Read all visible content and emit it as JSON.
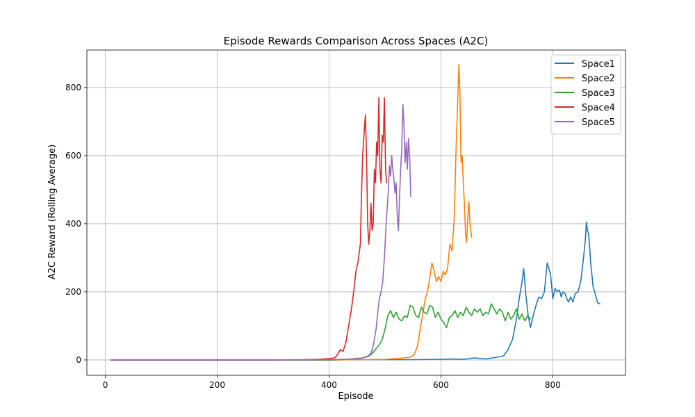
{
  "chart_data": {
    "type": "line",
    "title": "Episode Rewards Comparison Across Spaces (A2C)",
    "xlabel": "Episode",
    "ylabel": "A2C Reward (Rolling Average)",
    "xlim": [
      -33,
      930
    ],
    "ylim": [
      -45,
      910
    ],
    "xticks": [
      0,
      200,
      400,
      600,
      800
    ],
    "yticks": [
      0,
      200,
      400,
      600,
      800
    ],
    "grid": true,
    "legend_position": "top-right",
    "series": [
      {
        "name": "Space1",
        "color": "#1f77b4",
        "points": [
          [
            10,
            0
          ],
          [
            100,
            0
          ],
          [
            200,
            0
          ],
          [
            300,
            0
          ],
          [
            400,
            0
          ],
          [
            450,
            1
          ],
          [
            500,
            1
          ],
          [
            550,
            1
          ],
          [
            600,
            2
          ],
          [
            620,
            3
          ],
          [
            640,
            2
          ],
          [
            660,
            6
          ],
          [
            680,
            3
          ],
          [
            700,
            8
          ],
          [
            712,
            12
          ],
          [
            720,
            30
          ],
          [
            728,
            60
          ],
          [
            735,
            120
          ],
          [
            740,
            180
          ],
          [
            745,
            230
          ],
          [
            748,
            268
          ],
          [
            752,
            190
          ],
          [
            756,
            130
          ],
          [
            760,
            95
          ],
          [
            765,
            130
          ],
          [
            770,
            160
          ],
          [
            775,
            185
          ],
          [
            780,
            180
          ],
          [
            785,
            200
          ],
          [
            790,
            285
          ],
          [
            793,
            270
          ],
          [
            796,
            250
          ],
          [
            800,
            180
          ],
          [
            804,
            210
          ],
          [
            808,
            200
          ],
          [
            812,
            205
          ],
          [
            815,
            185
          ],
          [
            818,
            200
          ],
          [
            822,
            195
          ],
          [
            825,
            180
          ],
          [
            828,
            170
          ],
          [
            832,
            185
          ],
          [
            836,
            170
          ],
          [
            840,
            195
          ],
          [
            845,
            200
          ],
          [
            850,
            230
          ],
          [
            855,
            300
          ],
          [
            858,
            350
          ],
          [
            860,
            405
          ],
          [
            862,
            380
          ],
          [
            864,
            370
          ],
          [
            866,
            330
          ],
          [
            868,
            280
          ],
          [
            870,
            250
          ],
          [
            872,
            215
          ],
          [
            875,
            200
          ],
          [
            878,
            180
          ],
          [
            880,
            168
          ],
          [
            884,
            165
          ]
        ]
      },
      {
        "name": "Space2",
        "color": "#ff7f0e",
        "points": [
          [
            10,
            0
          ],
          [
            100,
            0
          ],
          [
            200,
            0
          ],
          [
            300,
            0
          ],
          [
            400,
            0
          ],
          [
            450,
            1
          ],
          [
            500,
            2
          ],
          [
            520,
            4
          ],
          [
            535,
            6
          ],
          [
            545,
            8
          ],
          [
            552,
            15
          ],
          [
            558,
            40
          ],
          [
            563,
            90
          ],
          [
            568,
            140
          ],
          [
            572,
            180
          ],
          [
            576,
            200
          ],
          [
            580,
            240
          ],
          [
            584,
            285
          ],
          [
            588,
            260
          ],
          [
            592,
            230
          ],
          [
            596,
            245
          ],
          [
            600,
            230
          ],
          [
            604,
            260
          ],
          [
            608,
            250
          ],
          [
            612,
            270
          ],
          [
            616,
            340
          ],
          [
            620,
            320
          ],
          [
            624,
            420
          ],
          [
            627,
            620
          ],
          [
            630,
            760
          ],
          [
            632,
            868
          ],
          [
            634,
            780
          ],
          [
            636,
            580
          ],
          [
            638,
            600
          ],
          [
            640,
            520
          ],
          [
            642,
            460
          ],
          [
            644,
            370
          ],
          [
            646,
            345
          ],
          [
            648,
            420
          ],
          [
            650,
            465
          ],
          [
            652,
            400
          ],
          [
            655,
            360
          ]
        ]
      },
      {
        "name": "Space3",
        "color": "#2ca02c",
        "points": [
          [
            10,
            0
          ],
          [
            100,
            0
          ],
          [
            200,
            0
          ],
          [
            300,
            0
          ],
          [
            400,
            0
          ],
          [
            440,
            3
          ],
          [
            460,
            6
          ],
          [
            470,
            10
          ],
          [
            478,
            20
          ],
          [
            485,
            35
          ],
          [
            490,
            45
          ],
          [
            495,
            60
          ],
          [
            500,
            90
          ],
          [
            505,
            130
          ],
          [
            510,
            145
          ],
          [
            515,
            125
          ],
          [
            520,
            140
          ],
          [
            525,
            120
          ],
          [
            530,
            115
          ],
          [
            535,
            130
          ],
          [
            540,
            125
          ],
          [
            545,
            160
          ],
          [
            550,
            155
          ],
          [
            555,
            130
          ],
          [
            560,
            125
          ],
          [
            565,
            155
          ],
          [
            570,
            140
          ],
          [
            575,
            135
          ],
          [
            580,
            160
          ],
          [
            585,
            155
          ],
          [
            590,
            125
          ],
          [
            595,
            140
          ],
          [
            600,
            120
          ],
          [
            605,
            110
          ],
          [
            610,
            95
          ],
          [
            615,
            125
          ],
          [
            620,
            130
          ],
          [
            625,
            145
          ],
          [
            630,
            125
          ],
          [
            635,
            140
          ],
          [
            640,
            130
          ],
          [
            645,
            155
          ],
          [
            650,
            140
          ],
          [
            655,
            130
          ],
          [
            660,
            150
          ],
          [
            665,
            140
          ],
          [
            670,
            150
          ],
          [
            675,
            130
          ],
          [
            680,
            140
          ],
          [
            685,
            135
          ],
          [
            690,
            165
          ],
          [
            695,
            150
          ],
          [
            700,
            135
          ],
          [
            705,
            150
          ],
          [
            710,
            140
          ],
          [
            715,
            115
          ],
          [
            720,
            140
          ],
          [
            725,
            120
          ],
          [
            730,
            130
          ],
          [
            735,
            150
          ],
          [
            740,
            120
          ],
          [
            745,
            135
          ],
          [
            750,
            115
          ],
          [
            755,
            130
          ],
          [
            760,
            120
          ]
        ]
      },
      {
        "name": "Space4",
        "color": "#d62728",
        "points": [
          [
            10,
            0
          ],
          [
            100,
            0
          ],
          [
            200,
            0
          ],
          [
            300,
            0
          ],
          [
            350,
            1
          ],
          [
            380,
            2
          ],
          [
            400,
            4
          ],
          [
            410,
            6
          ],
          [
            415,
            15
          ],
          [
            420,
            30
          ],
          [
            425,
            25
          ],
          [
            430,
            50
          ],
          [
            435,
            100
          ],
          [
            440,
            150
          ],
          [
            444,
            200
          ],
          [
            448,
            260
          ],
          [
            452,
            290
          ],
          [
            456,
            340
          ],
          [
            458,
            480
          ],
          [
            460,
            600
          ],
          [
            462,
            650
          ],
          [
            464,
            700
          ],
          [
            465,
            720
          ],
          [
            467,
            600
          ],
          [
            469,
            400
          ],
          [
            471,
            340
          ],
          [
            473,
            380
          ],
          [
            475,
            460
          ],
          [
            477,
            380
          ],
          [
            479,
            400
          ],
          [
            481,
            560
          ],
          [
            483,
            520
          ],
          [
            485,
            640
          ],
          [
            487,
            600
          ],
          [
            489,
            770
          ],
          [
            491,
            560
          ],
          [
            493,
            520
          ],
          [
            495,
            660
          ],
          [
            497,
            640
          ],
          [
            499,
            770
          ],
          [
            501,
            560
          ],
          [
            503,
            520
          ]
        ]
      },
      {
        "name": "Space5",
        "color": "#9467bd",
        "points": [
          [
            10,
            0
          ],
          [
            100,
            0
          ],
          [
            200,
            0
          ],
          [
            300,
            0
          ],
          [
            400,
            1
          ],
          [
            430,
            2
          ],
          [
            450,
            4
          ],
          [
            460,
            6
          ],
          [
            470,
            12
          ],
          [
            475,
            20
          ],
          [
            478,
            35
          ],
          [
            481,
            60
          ],
          [
            484,
            90
          ],
          [
            487,
            140
          ],
          [
            490,
            180
          ],
          [
            493,
            200
          ],
          [
            496,
            230
          ],
          [
            499,
            300
          ],
          [
            502,
            400
          ],
          [
            504,
            450
          ],
          [
            506,
            500
          ],
          [
            508,
            570
          ],
          [
            510,
            540
          ],
          [
            512,
            600
          ],
          [
            514,
            560
          ],
          [
            516,
            530
          ],
          [
            518,
            490
          ],
          [
            520,
            520
          ],
          [
            522,
            420
          ],
          [
            524,
            380
          ],
          [
            526,
            480
          ],
          [
            528,
            560
          ],
          [
            530,
            620
          ],
          [
            532,
            750
          ],
          [
            534,
            690
          ],
          [
            536,
            580
          ],
          [
            538,
            640
          ],
          [
            540,
            560
          ],
          [
            542,
            650
          ],
          [
            544,
            600
          ],
          [
            546,
            480
          ]
        ]
      }
    ]
  }
}
